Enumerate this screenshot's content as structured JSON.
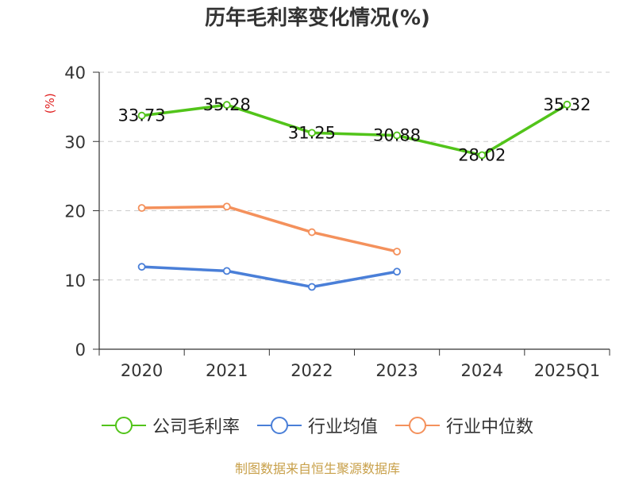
{
  "chart_data": {
    "type": "line",
    "title": "历年毛利率变化情况(%)",
    "ylabel": "(%)",
    "categories": [
      "2020",
      "2021",
      "2022",
      "2023",
      "2024",
      "2025Q1"
    ],
    "ylim": [
      0,
      40
    ],
    "yticks": [
      0,
      10,
      20,
      30,
      40
    ],
    "grid": true,
    "legend_position": "bottom",
    "series": [
      {
        "name": "公司毛利率",
        "color": "#52c41a",
        "values": [
          33.73,
          35.28,
          31.25,
          30.88,
          28.02,
          35.32
        ],
        "labels": [
          "33.73",
          "35.28",
          "31.25",
          "30.88",
          "28.02",
          "35.32"
        ]
      },
      {
        "name": "行业均值",
        "color": "#4a7fd8",
        "values": [
          11.9,
          11.3,
          9.0,
          11.2,
          null,
          null
        ]
      },
      {
        "name": "行业中位数",
        "color": "#f4915c",
        "values": [
          20.4,
          20.6,
          16.9,
          14.1,
          null,
          null
        ]
      }
    ]
  },
  "footer": {
    "source": "制图数据来自恒生聚源数据库"
  }
}
